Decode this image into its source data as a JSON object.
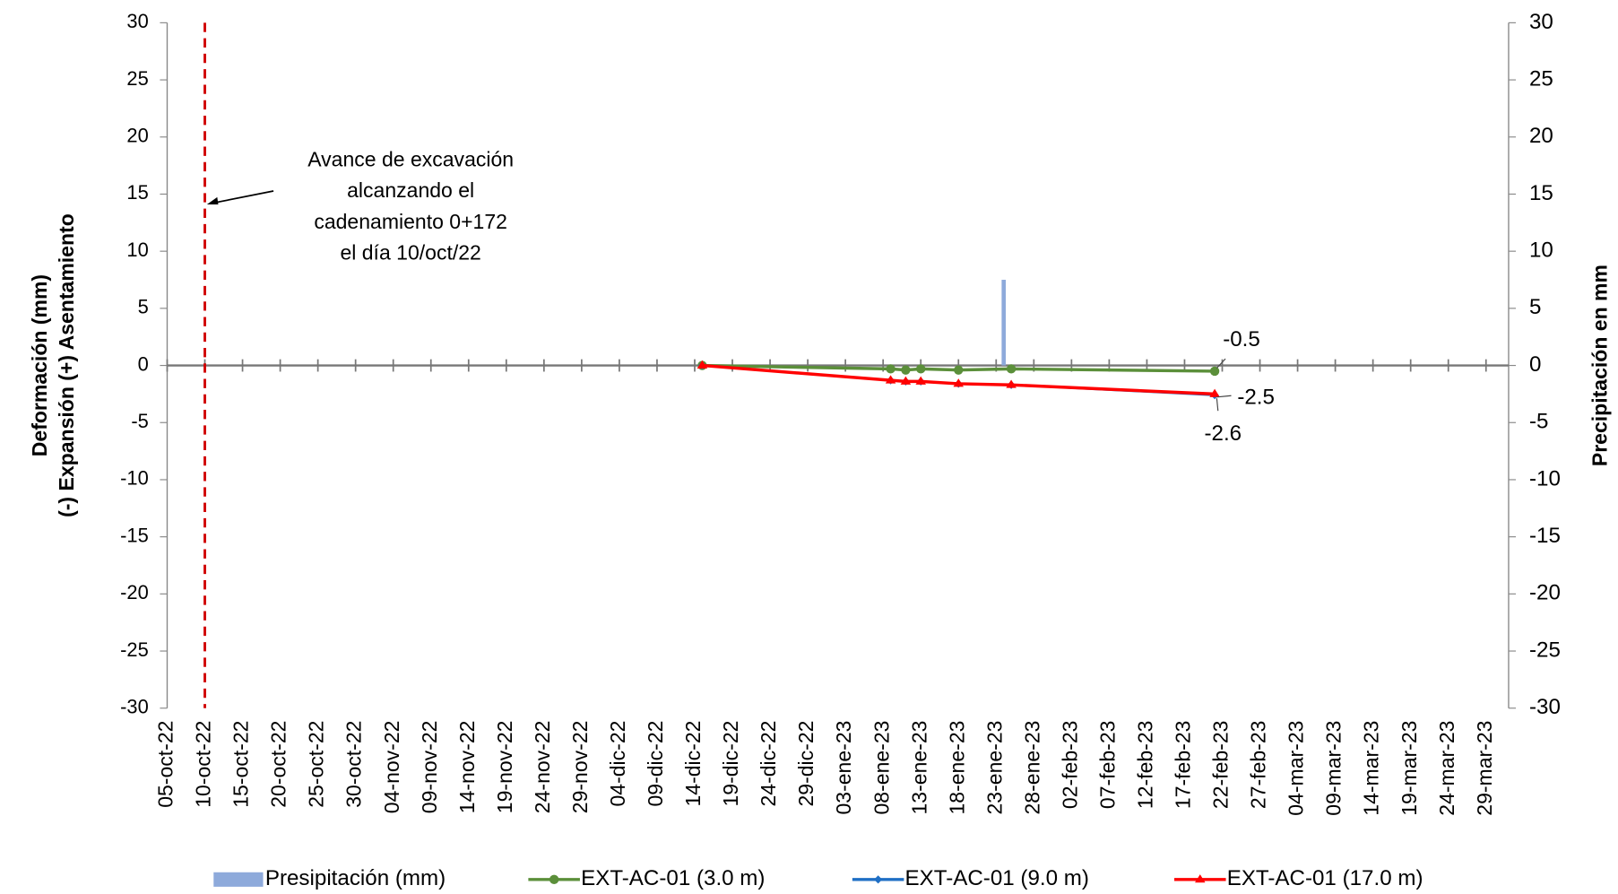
{
  "chart_data": {
    "type": "line",
    "y_label_lines": [
      "Deformación (mm)",
      "(-) Expansión    (+) Asentamiento"
    ],
    "y2_label": "Precipitación en mm",
    "annotation_lines": [
      "Avance de excavación",
      "alcanzando el",
      "cadenamiento 0+172",
      "el día 10/oct/22"
    ],
    "event_date": "2022-10-10",
    "xlim": [
      "2022-10-05",
      "2023-04-01"
    ],
    "xticks": [
      {
        "value": "2022-10-05",
        "label": "05-oct-22"
      },
      {
        "value": "2022-10-10",
        "label": "10-oct-22"
      },
      {
        "value": "2022-10-15",
        "label": "15-oct-22"
      },
      {
        "value": "2022-10-20",
        "label": "20-oct-22"
      },
      {
        "value": "2022-10-25",
        "label": "25-oct-22"
      },
      {
        "value": "2022-10-30",
        "label": "30-oct-22"
      },
      {
        "value": "2022-11-04",
        "label": "04-nov-22"
      },
      {
        "value": "2022-11-09",
        "label": "09-nov-22"
      },
      {
        "value": "2022-11-14",
        "label": "14-nov-22"
      },
      {
        "value": "2022-11-19",
        "label": "19-nov-22"
      },
      {
        "value": "2022-11-24",
        "label": "24-nov-22"
      },
      {
        "value": "2022-11-29",
        "label": "29-nov-22"
      },
      {
        "value": "2022-12-04",
        "label": "04-dic-22"
      },
      {
        "value": "2022-12-09",
        "label": "09-dic-22"
      },
      {
        "value": "2022-12-14",
        "label": "14-dic-22"
      },
      {
        "value": "2022-12-19",
        "label": "19-dic-22"
      },
      {
        "value": "2022-12-24",
        "label": "24-dic-22"
      },
      {
        "value": "2022-12-29",
        "label": "29-dic-22"
      },
      {
        "value": "2023-01-03",
        "label": "03-ene-23"
      },
      {
        "value": "2023-01-08",
        "label": "08-ene-23"
      },
      {
        "value": "2023-01-13",
        "label": "13-ene-23"
      },
      {
        "value": "2023-01-18",
        "label": "18-ene-23"
      },
      {
        "value": "2023-01-23",
        "label": "23-ene-23"
      },
      {
        "value": "2023-01-28",
        "label": "28-ene-23"
      },
      {
        "value": "2023-02-02",
        "label": "02-feb-23"
      },
      {
        "value": "2023-02-07",
        "label": "07-feb-23"
      },
      {
        "value": "2023-02-12",
        "label": "12-feb-23"
      },
      {
        "value": "2023-02-17",
        "label": "17-feb-23"
      },
      {
        "value": "2023-02-22",
        "label": "22-feb-23"
      },
      {
        "value": "2023-02-27",
        "label": "27-feb-23"
      },
      {
        "value": "2023-03-04",
        "label": "04-mar-23"
      },
      {
        "value": "2023-03-09",
        "label": "09-mar-23"
      },
      {
        "value": "2023-03-14",
        "label": "14-mar-23"
      },
      {
        "value": "2023-03-19",
        "label": "19-mar-23"
      },
      {
        "value": "2023-03-24",
        "label": "24-mar-23"
      },
      {
        "value": "2023-03-29",
        "label": "29-mar-23"
      }
    ],
    "ylim": [
      -30,
      30
    ],
    "yticks": [
      -30,
      -25,
      -20,
      -15,
      -10,
      -5,
      0,
      5,
      10,
      15,
      20,
      25,
      30
    ],
    "y2lim": [
      -30,
      30
    ],
    "y2ticks": [
      -30,
      -25,
      -20,
      -15,
      -10,
      -5,
      0,
      5,
      10,
      15,
      20,
      25,
      30
    ],
    "bars": {
      "name": "Presipitación (mm)",
      "color": "#8eaadb",
      "axis": "y2",
      "x": [
        "2023-01-24"
      ],
      "values": [
        7.5
      ]
    },
    "x": [
      "2022-12-15",
      "2023-01-09",
      "2023-01-11",
      "2023-01-13",
      "2023-01-18",
      "2023-01-25",
      "2023-02-21"
    ],
    "series": [
      {
        "name": "EXT-AC-01 (3.0 m)",
        "color": "#5b8f3a",
        "marker": "circle",
        "label_last": true,
        "values": [
          0,
          -0.3,
          -0.4,
          -0.3,
          -0.4,
          -0.3,
          -0.5
        ]
      },
      {
        "name": "EXT-AC-01 (9.0 m)",
        "color": "#1f6fc5",
        "marker": "diamond",
        "label_last": true,
        "values": [
          0,
          -1.3,
          -1.4,
          -1.4,
          -1.6,
          -1.7,
          -2.6
        ]
      },
      {
        "name": "EXT-AC-01 (17.0 m)",
        "color": "#ff0000",
        "marker": "triangle",
        "label_last": true,
        "values": [
          0,
          -1.3,
          -1.4,
          -1.4,
          -1.6,
          -1.7,
          -2.5
        ]
      }
    ]
  }
}
